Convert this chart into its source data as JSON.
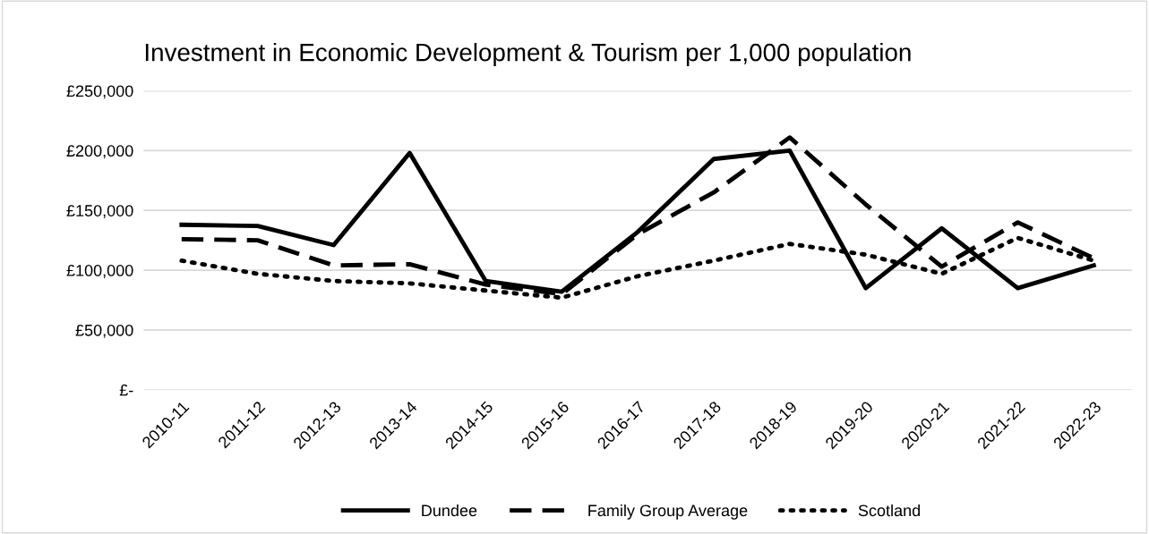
{
  "chart_data": {
    "type": "line",
    "title": "Investment in Economic Development & Tourism per 1,000 population",
    "categories": [
      "2010-11",
      "2011-12",
      "2012-13",
      "2013-14",
      "2014-15",
      "2015-16",
      "2016-17",
      "2017-18",
      "2018-19",
      "2019-20",
      "2020-21",
      "2021-22",
      "2022-23"
    ],
    "series": [
      {
        "name": "Dundee",
        "color": "#000000",
        "line_style": "solid",
        "values": [
          138000,
          137000,
          121000,
          198000,
          91000,
          82000,
          132000,
          193000,
          200000,
          85000,
          135000,
          85000,
          104000
        ]
      },
      {
        "name": "Family Group Average",
        "color": "#000000",
        "line_style": "dashed",
        "values": [
          126000,
          125000,
          104000,
          105000,
          88000,
          80000,
          130000,
          165000,
          211000,
          155000,
          103000,
          140000,
          110000
        ]
      },
      {
        "name": "Scotland",
        "color": "#000000",
        "line_style": "dotted",
        "values": [
          108000,
          97000,
          91000,
          89000,
          83000,
          77000,
          95000,
          108000,
          122000,
          113000,
          97000,
          127000,
          108000
        ]
      }
    ],
    "ylim": [
      0,
      250000
    ],
    "yticks": [
      {
        "value": 0,
        "label": "£-"
      },
      {
        "value": 50000,
        "label": "£50,000"
      },
      {
        "value": 100000,
        "label": "£100,000"
      },
      {
        "value": 150000,
        "label": "£150,000"
      },
      {
        "value": 200000,
        "label": "£200,000"
      },
      {
        "value": 250000,
        "label": "£250,000"
      }
    ],
    "grid": "y",
    "legend": "bottom",
    "marker": "none"
  }
}
